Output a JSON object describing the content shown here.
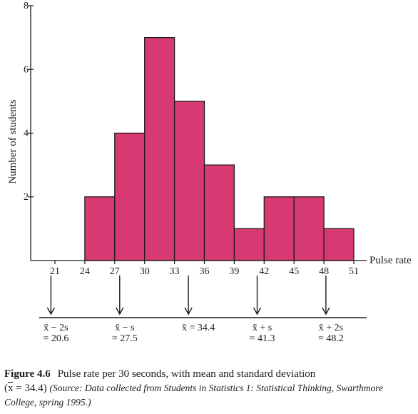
{
  "chart_data": {
    "type": "bar",
    "title": "",
    "xlabel": "Pulse rate",
    "ylabel": "Number of students",
    "x_ticks": [
      21,
      24,
      27,
      30,
      33,
      36,
      39,
      42,
      45,
      48,
      51
    ],
    "y_ticks": [
      2,
      4,
      6,
      8
    ],
    "ylim": [
      0,
      8
    ],
    "xlim": [
      21,
      51
    ],
    "bins": [
      {
        "start": 24,
        "end": 27,
        "value": 2
      },
      {
        "start": 27,
        "end": 30,
        "value": 4
      },
      {
        "start": 30,
        "end": 33,
        "value": 7
      },
      {
        "start": 33,
        "end": 36,
        "value": 5
      },
      {
        "start": 36,
        "end": 39,
        "value": 3
      },
      {
        "start": 39,
        "end": 42,
        "value": 1
      },
      {
        "start": 42,
        "end": 45,
        "value": 2
      },
      {
        "start": 45,
        "end": 48,
        "value": 2
      },
      {
        "start": 48,
        "end": 51,
        "value": 1
      }
    ],
    "bar_color": "#d73a73",
    "annotations": [
      {
        "x": 20.6,
        "line1": "x̄ − 2s",
        "line2": "= 20.6"
      },
      {
        "x": 27.5,
        "line1": "x̄ − s",
        "line2": "= 27.5"
      },
      {
        "x": 34.4,
        "line1": "x̄ = 34.4",
        "line2": ""
      },
      {
        "x": 41.3,
        "line1": "x̄ + s",
        "line2": "= 41.3"
      },
      {
        "x": 48.2,
        "line1": "x̄ + 2s",
        "line2": "= 48.2"
      }
    ]
  },
  "caption": {
    "figure_number": "Figure 4.6",
    "text": "Pulse rate per 30 seconds, with mean and standard deviation",
    "mean_open": "(",
    "mean_symbol": "x",
    "mean_value": " = 34.4)",
    "source": "(Source: Data collected from Students in Statistics 1: Statistical Thinking, Swarthmore College, spring 1995.)"
  }
}
